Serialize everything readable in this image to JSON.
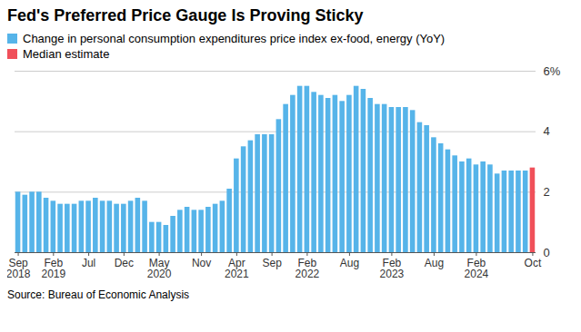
{
  "chart_data": {
    "type": "bar",
    "title": "Fed's Preferred Price Gauge Is Proving Sticky",
    "source": "Source: Bureau of Economic Analysis",
    "categories": [
      "Sep 2018",
      null,
      null,
      null,
      null,
      "Feb 2019",
      null,
      null,
      null,
      null,
      "Jul",
      null,
      null,
      null,
      null,
      "Dec",
      null,
      null,
      null,
      null,
      "May 2020",
      null,
      null,
      null,
      null,
      null,
      "Nov",
      null,
      null,
      null,
      null,
      "Apr 2021",
      null,
      null,
      null,
      null,
      "Sep",
      null,
      null,
      null,
      null,
      "Feb 2022",
      null,
      null,
      null,
      null,
      null,
      "Aug",
      null,
      null,
      null,
      null,
      null,
      "Feb 2023",
      null,
      null,
      null,
      null,
      null,
      "Aug",
      null,
      null,
      null,
      null,
      null,
      "Feb 2024",
      null,
      null,
      null,
      null,
      null,
      null,
      null,
      "Oct"
    ],
    "series": [
      {
        "name": "Change in personal consumption expenditures price index ex-food, energy (YoY)",
        "color": "#56b4e9",
        "values": [
          2.0,
          1.9,
          2.0,
          2.0,
          1.8,
          1.7,
          1.6,
          1.6,
          1.6,
          1.7,
          1.7,
          1.8,
          1.7,
          1.7,
          1.6,
          1.6,
          1.7,
          1.8,
          1.7,
          1.0,
          1.0,
          0.9,
          1.2,
          1.4,
          1.5,
          1.4,
          1.4,
          1.5,
          1.6,
          1.7,
          2.1,
          3.1,
          3.5,
          3.7,
          3.9,
          3.9,
          3.9,
          4.4,
          4.9,
          5.2,
          5.5,
          5.5,
          5.3,
          5.2,
          5.1,
          5.2,
          5.0,
          5.2,
          5.5,
          5.4,
          5.1,
          4.9,
          4.9,
          4.8,
          4.8,
          4.8,
          4.7,
          4.3,
          4.2,
          3.8,
          3.6,
          3.4,
          3.2,
          3.0,
          3.1,
          2.9,
          3.0,
          2.9,
          2.6,
          2.7,
          2.7,
          2.7,
          2.7,
          null
        ]
      },
      {
        "name": "Median estimate",
        "color": "#f0505a",
        "values": [
          null,
          null,
          null,
          null,
          null,
          null,
          null,
          null,
          null,
          null,
          null,
          null,
          null,
          null,
          null,
          null,
          null,
          null,
          null,
          null,
          null,
          null,
          null,
          null,
          null,
          null,
          null,
          null,
          null,
          null,
          null,
          null,
          null,
          null,
          null,
          null,
          null,
          null,
          null,
          null,
          null,
          null,
          null,
          null,
          null,
          null,
          null,
          null,
          null,
          null,
          null,
          null,
          null,
          null,
          null,
          null,
          null,
          null,
          null,
          null,
          null,
          null,
          null,
          null,
          null,
          null,
          null,
          null,
          null,
          null,
          null,
          null,
          null,
          2.8
        ]
      }
    ],
    "ylim": [
      0,
      6
    ],
    "yticks": [
      0,
      2,
      4,
      {
        "value": 6,
        "label": "6%"
      }
    ],
    "grid": true,
    "legend": "top-left"
  }
}
